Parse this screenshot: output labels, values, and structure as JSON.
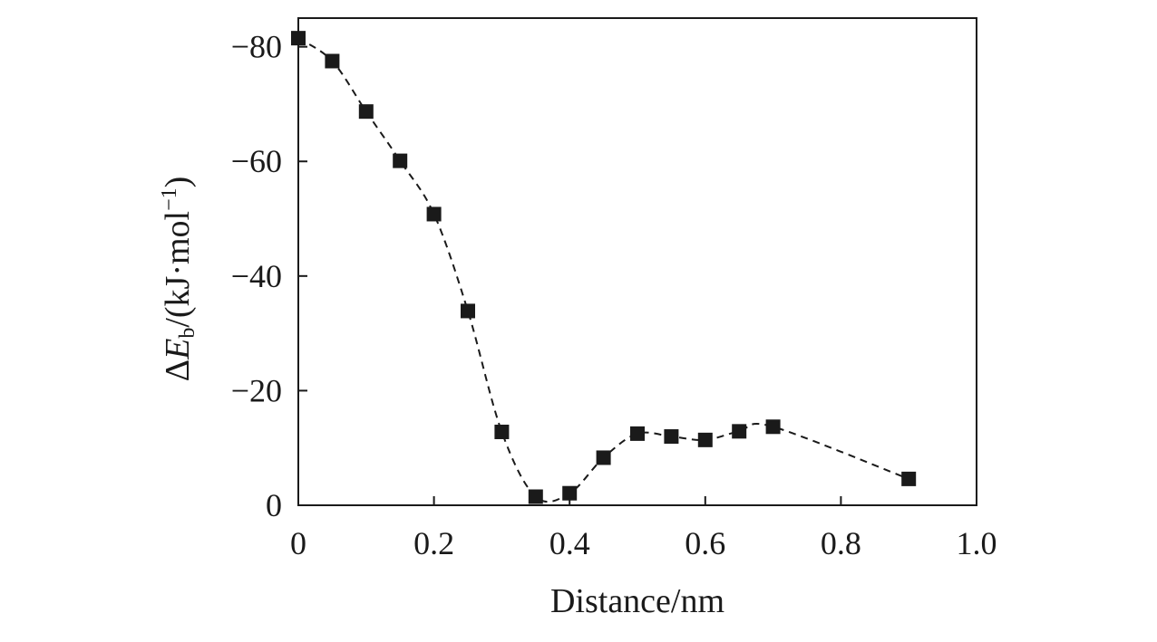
{
  "chart_data": {
    "type": "line",
    "xlabel": "Distance/nm",
    "ylabel": {
      "delta": "Δ",
      "symbol": "E",
      "subscript": "b",
      "unit_open": "/(kJ·mol",
      "superscript": "−1",
      "unit_close": ")"
    },
    "xlim": [
      0,
      1.0
    ],
    "ylim": [
      0,
      -85
    ],
    "y_axis_inverted": true,
    "x_ticks": [
      0,
      0.2,
      0.4,
      0.6,
      0.8,
      1.0
    ],
    "x_tick_labels": [
      "0",
      "0.2",
      "0.4",
      "0.6",
      "0.8",
      "1.0"
    ],
    "y_ticks": [
      0,
      -20,
      -40,
      -60,
      -80
    ],
    "y_tick_labels": [
      "0",
      "−20",
      "−40",
      "−60",
      "−80"
    ],
    "grid": false,
    "marker": "filled-square",
    "line_style": "dashed",
    "series": [
      {
        "x": [
          0,
          0.05,
          0.1,
          0.15,
          0.2,
          0.25,
          0.3,
          0.35,
          0.4,
          0.45,
          0.5,
          0.55,
          0.6,
          0.65,
          0.7,
          0.9
        ],
        "y": [
          -81.5,
          -77.5,
          -68.7,
          -60.1,
          -50.8,
          -33.9,
          -12.8,
          -1.5,
          -2.1,
          -8.3,
          -12.5,
          -12.0,
          -11.4,
          -12.9,
          -13.7,
          -4.6
        ]
      }
    ]
  }
}
